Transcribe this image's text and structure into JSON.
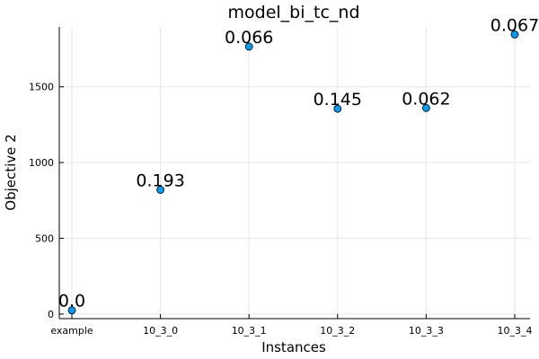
{
  "chart_data": {
    "type": "scatter",
    "title": "model_bi_tc_nd",
    "xlabel": "Instances",
    "ylabel": "Objective 2",
    "categories": [
      "example",
      "10_3_0",
      "10_3_1",
      "10_3_2",
      "10_3_3",
      "10_3_4"
    ],
    "values": [
      25,
      820,
      1765,
      1355,
      1360,
      1845
    ],
    "point_labels": [
      "0.0",
      "0.193",
      "0.066",
      "0.145",
      "0.062",
      "0.067"
    ],
    "yticks": [
      0,
      500,
      1000,
      1500
    ],
    "ylim": [
      -30,
      1895
    ],
    "grid": true,
    "legend": "none",
    "colors": {
      "marker": "#009af9",
      "marker_stroke": "#000000",
      "grid": "#e6e6e6",
      "axis": "#000000"
    }
  }
}
